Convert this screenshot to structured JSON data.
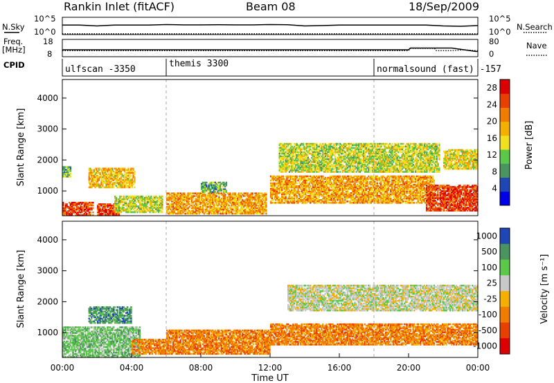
{
  "header": {
    "station": "Rankin Inlet (fitACF)",
    "beam": "Beam 08",
    "date": "18/Sep/2009"
  },
  "colors": {
    "scale": [
      "#0000e6",
      "#1e46b4",
      "#4a9460",
      "#5cc84a",
      "#f0e020",
      "#f4b000",
      "#f07c00",
      "#e84000",
      "#dc0000"
    ],
    "velocity_scale": [
      "#1e46b4",
      "#4a9460",
      "#5cc84a",
      "#c8c8c8",
      "#f4b000",
      "#f07c00",
      "#e84000",
      "#dc0000"
    ]
  },
  "chart_data": [
    {
      "type": "line",
      "panel": "noise",
      "left_label": "N.Sky",
      "right_label": "N.Search",
      "left_ticks": [
        "10^5",
        "10^0"
      ],
      "right_ticks": [
        "10^5",
        "10^0"
      ],
      "series": [
        {
          "style": "solid",
          "x": [
            0,
            1,
            2,
            3,
            4,
            5,
            6,
            7,
            8,
            9,
            10,
            11,
            12,
            13,
            14,
            15,
            16,
            17,
            18,
            19,
            20,
            21,
            22,
            23,
            24
          ],
          "y": [
            0.55,
            0.55,
            0.5,
            0.55,
            0.55,
            0.55,
            0.58,
            0.56,
            0.56,
            0.57,
            0.56,
            0.56,
            0.58,
            0.57,
            0.5,
            0.52,
            0.55,
            0.55,
            0.55,
            0.55,
            0.55,
            0.55,
            0.5,
            0.48,
            0.52
          ]
        },
        {
          "style": "dotted",
          "x": [
            0,
            24
          ],
          "y": [
            0.05,
            0.05
          ]
        }
      ]
    },
    {
      "type": "line",
      "panel": "frequency",
      "left_label": "Freq.",
      "left_unit": "[MHz]",
      "right_label": "Nave",
      "left_ticks": [
        "18",
        "8"
      ],
      "right_ticks": [
        "80",
        "0"
      ],
      "series": [
        {
          "style": "solid",
          "x": [
            0,
            18,
            18.1,
            20,
            20.1,
            22.5,
            23.2,
            23.9,
            24
          ],
          "y": [
            12,
            12,
            12,
            12,
            13,
            13,
            12,
            11,
            11
          ]
        },
        {
          "style": "dotted",
          "x": [
            0,
            20,
            20.1,
            21.5,
            21.6,
            22.5,
            23.2,
            24
          ],
          "y": [
            11.5,
            11.5,
            12.8,
            12.8,
            11.5,
            11.5,
            12,
            11.5
          ]
        }
      ]
    },
    {
      "type": "table",
      "panel": "cpid",
      "label": "CPID",
      "segments": [
        {
          "start": 0,
          "end": 6,
          "name": "ulfscan -3350"
        },
        {
          "start": 6,
          "end": 18,
          "name": "themis 3300"
        },
        {
          "start": 18,
          "end": 24,
          "name": "normalsound (fast) -157"
        }
      ]
    },
    {
      "type": "heatmap",
      "panel": "power",
      "ylabel": "Slant Range [km]",
      "ylim": [
        200,
        4600
      ],
      "yticks": [
        1000,
        2000,
        3000,
        4000
      ],
      "colorbar_label": "Power [dB]",
      "colorbar_ticks": [
        4,
        8,
        12,
        16,
        20,
        24,
        28
      ],
      "colorbar_range": [
        0,
        30
      ],
      "regions": [
        {
          "t0": 0.0,
          "t1": 0.5,
          "r0": 1450,
          "r1": 1800,
          "v": 10
        },
        {
          "t0": 0.0,
          "t1": 1.8,
          "r0": 200,
          "r1": 650,
          "v": 26
        },
        {
          "t0": 1.5,
          "t1": 4.2,
          "r0": 1100,
          "r1": 1750,
          "v": 18
        },
        {
          "t0": 2.0,
          "t1": 3.3,
          "r0": 200,
          "r1": 600,
          "v": 27
        },
        {
          "t0": 3.0,
          "t1": 5.8,
          "r0": 300,
          "r1": 850,
          "v": 14
        },
        {
          "t0": 6.0,
          "t1": 11.8,
          "r0": 250,
          "r1": 950,
          "v": 20
        },
        {
          "t0": 8.0,
          "t1": 9.5,
          "r0": 950,
          "r1": 1300,
          "v": 10
        },
        {
          "t0": 12.0,
          "t1": 21.5,
          "r0": 600,
          "r1": 1500,
          "v": 20
        },
        {
          "t0": 12.5,
          "t1": 21.8,
          "r0": 1600,
          "r1": 2550,
          "v": 14
        },
        {
          "t0": 21.0,
          "t1": 24.0,
          "r0": 350,
          "r1": 1200,
          "v": 27
        },
        {
          "t0": 22.0,
          "t1": 24.0,
          "r0": 1700,
          "r1": 2350,
          "v": 16
        }
      ]
    },
    {
      "type": "heatmap",
      "panel": "velocity",
      "xlabel": "Time UT",
      "ylabel": "Slant Range [km]",
      "ylim": [
        200,
        4600
      ],
      "yticks": [
        1000,
        2000,
        3000,
        4000
      ],
      "xticks": [
        "00:00",
        "04:00",
        "08:00",
        "12:00",
        "16:00",
        "20:00",
        "00:00"
      ],
      "xlim": [
        0,
        24
      ],
      "colorbar_label": "Velocity [m s⁻¹]",
      "colorbar_ticks": [
        "1000",
        "500",
        "100",
        "25",
        "-25",
        "-100",
        "-500",
        "-1000"
      ],
      "regions": [
        {
          "t0": 0.0,
          "t1": 4.5,
          "r0": 200,
          "r1": 1200,
          "v": 2
        },
        {
          "t0": 1.5,
          "t1": 4.0,
          "r0": 1300,
          "r1": 1850,
          "v": 1
        },
        {
          "t0": 4.0,
          "t1": 6.0,
          "r0": 300,
          "r1": 800,
          "v": 5
        },
        {
          "t0": 6.0,
          "t1": 12.0,
          "r0": 300,
          "r1": 1100,
          "v": 5
        },
        {
          "t0": 12.0,
          "t1": 24.0,
          "r0": 600,
          "r1": 1300,
          "v": 5
        },
        {
          "t0": 13.0,
          "t1": 24.0,
          "r0": 1700,
          "r1": 2550,
          "v": 3
        }
      ]
    }
  ]
}
